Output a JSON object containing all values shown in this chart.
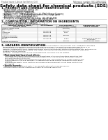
{
  "bg_color": "#ffffff",
  "header_left": "Product name: Lithium Ion Battery Cell",
  "header_right_line1": "Reference number: SBC-GEN-00010",
  "header_right_line2": "Established / Revision: Dec.1.2010",
  "title": "Safety data sheet for chemical products (SDS)",
  "section1_title": "1. PRODUCT AND COMPANY IDENTIFICATION",
  "section1_lines": [
    "  • Product name: Lithium Ion Battery Cell",
    "  • Product code: Cylindrical-type cell",
    "      SN18650U, SN18650L, SN18650A",
    "  • Company name:     Sanyo Electric Co., Ltd., Mobile Energy Company",
    "  • Address:              2001, Kamimakura, Sumoto-City, Hyogo, Japan",
    "  • Telephone number:  +81-799-26-4111",
    "  • Fax number:  +81-799-26-4120",
    "  • Emergency telephone number (Weekday): +81-799-26-3662",
    "                                   (Night and holiday): +81-799-26-4131"
  ],
  "section2_title": "2. COMPOSITION / INFORMATION ON INGREDIENTS",
  "section2_sub": "  • Substance or preparation: Preparation",
  "section2_sub2": "  • Information about the chemical nature of product:",
  "table_col_headers1": [
    "Chemical chemical name /",
    "CAS number",
    "Concentration /",
    "Classification and"
  ],
  "table_col_headers2": [
    "Several name",
    "",
    "Concentration range",
    "hazard labeling"
  ],
  "table_rows": [
    [
      "Lithium cobalt oxide",
      "-",
      "(30-40%)",
      ""
    ],
    [
      "(LiMn-Co)O2)",
      "",
      "",
      ""
    ],
    [
      "Iron",
      "7439-89-6",
      "15-25%",
      "-"
    ],
    [
      "Aluminum",
      "7429-90-5",
      "2-6%",
      "-"
    ],
    [
      "Graphite",
      "",
      "",
      ""
    ],
    [
      "(Natural graphite)",
      "7782-42-5",
      "10-20%",
      "-"
    ],
    [
      "(Artificial graphite)",
      "7782-44-0",
      "",
      ""
    ],
    [
      "Copper",
      "7440-50-8",
      "5-15%",
      "Sensitization of the skin\ngroup R43"
    ],
    [
      "Organic electrolyte",
      "-",
      "10-20%",
      "Inflammable liquid"
    ]
  ],
  "section3_title": "3. HAZARDS IDENTIFICATION",
  "section3_body": [
    "For this battery cell, chemical materials are stored in a hermetically-sealed metal case, designed to withstand",
    "temperatures and pressures encountered during normal use. As a result, during normal use, there is no",
    "physical danger of ignition or explosion and there is no danger of hazardous materials leakage.",
    "However, if exposed to a fire, added mechanical shocks, decomposes, written electric strong city, materials use,",
    "the gas release ventral be operated. The battery cell case will be breached of fire-extreme, hazardous",
    "materials may be released.",
    "Moreover, if heated strongly by the surrounding fire, some gas may be emitted."
  ],
  "section3_bullet1": "• Most important hazard and effects:",
  "section3_human": "Human health effects:",
  "section3_human_lines": [
    "Inhalation: The steam of the electrolyte has an anesthesia action and stimulates a respiratory tract.",
    "Skin contact: The steam of the electrolyte stimulates a skin. The electrolyte skin contact causes a",
    "sore and stimulation on the skin.",
    "Eye contact: The steam of the electrolyte stimulates eyes. The electrolyte eye contact causes a sore",
    "and stimulation on the eye. Especially, a substance that causes a strong inflammation of the eye is",
    "contained.",
    "Environmental effects: Since a battery cell remains in the environment, do not throw out it into the",
    "environment."
  ],
  "section3_bullet2": "• Specific hazards:",
  "section3_specific": [
    "If the electrolyte contacts with water, it will generate detrimental hydrogen fluoride.",
    "Since the used electrolyte is inflammable liquid, do not bring close to fire."
  ]
}
